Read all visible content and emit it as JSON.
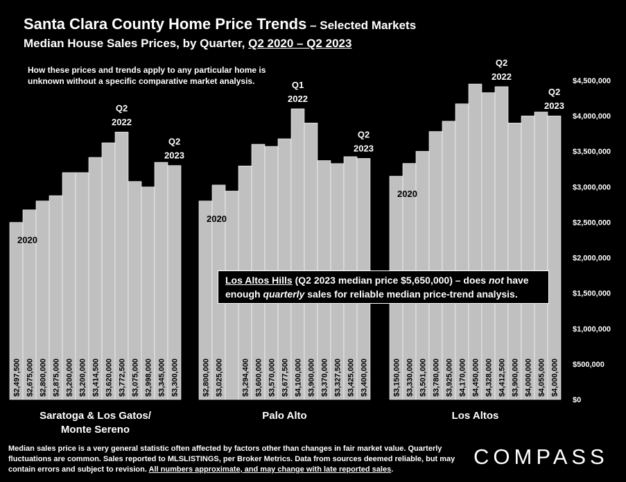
{
  "header": {
    "title_main": "Santa Clara County Home Price Trends",
    "title_suffix": " – Selected Markets",
    "subtitle_prefix": "Median House Sales Prices, by Quarter, ",
    "subtitle_period": "Q2 2020 – Q2 2023",
    "note": "How these prices and trends apply to any particular home is unknown without a specific comparative market analysis."
  },
  "callout": {
    "link_text": "Los Altos Hills",
    "text_a": " (Q2 2023 median price $5,650,000) – does ",
    "emph_not": "not",
    "text_b": " have enough ",
    "emph_quarterly": "quarterly",
    "text_c": " sales for reliable median price-trend analysis."
  },
  "footer": {
    "text": "Median sales price is a very general statistic often affected by factors other than changes in fair market value. Quarterly fluctuations are common. Sales reported to MLSLISTINGS, per Broker Metrics. Data from sources deemed reliable, but may contain errors and subject to revision. ",
    "underlined": "All numbers approximate, and may change with late reported sales",
    "end": "."
  },
  "logo": {
    "text": "COMPASS"
  },
  "colors": {
    "background": "#000000",
    "bar": "#c0c0c0",
    "text": "#ffffff"
  },
  "chart_data": {
    "type": "bar",
    "ylim": [
      0,
      4500000
    ],
    "yticks": [
      "$0",
      "$500,000",
      "$1,000,000",
      "$1,500,000",
      "$2,000,000",
      "$2,500,000",
      "$3,000,000",
      "$3,500,000",
      "$4,000,000",
      "$4,500,000"
    ],
    "grid": false,
    "groups": [
      {
        "name": "Saratoga & Los Gatos/\nMonte Sereno",
        "values": [
          2497500,
          2675000,
          2800000,
          2875000,
          3200000,
          3200000,
          3414500,
          3620000,
          3772500,
          3075000,
          2998000,
          3345000,
          3300000
        ],
        "labels": [
          "$2,497,500",
          "$2,675,000",
          "$2,800,000",
          "$2,875,000",
          "$3,200,000",
          "$3,200,000",
          "$3,414,500",
          "$3,620,000",
          "$3,772,500",
          "$3,075,000",
          "$2,998,000",
          "$3,345,000",
          "$3,300,000"
        ],
        "annotations": [
          {
            "index": 0,
            "text": "2020"
          },
          {
            "index": 8,
            "text": "Q2\n2022"
          },
          {
            "index": 12,
            "text": "Q2\n2023"
          }
        ]
      },
      {
        "name": "Palo Alto",
        "values": [
          2800000,
          3025000,
          2940000,
          3294400,
          3600000,
          3570000,
          3677500,
          4100000,
          3900000,
          3370000,
          3327500,
          3425000,
          3400000
        ],
        "labels": [
          "$2,800,000",
          "$3,025,000",
          "",
          "$3,294,400",
          "$3,600,000",
          "$3,570,000",
          "$3,677,500",
          "$4,100,000",
          "$3,900,000",
          "$3,370,000",
          "$3,327,500",
          "$3,425,000",
          "$3,400,000"
        ],
        "annotations": [
          {
            "index": 0,
            "text": "2020"
          },
          {
            "index": 7,
            "text": "Q1\n2022"
          },
          {
            "index": 12,
            "text": "Q2\n2023"
          }
        ]
      },
      {
        "name": "Los Altos",
        "values": [
          3150000,
          3330000,
          3501000,
          3780000,
          3925000,
          4170000,
          4450000,
          4328000,
          4412500,
          3900000,
          4000000,
          4055000,
          4000000
        ],
        "labels": [
          "$3,150,000",
          "$3,330,000",
          "$3,501,000",
          "$3,780,000",
          "$3,925,000",
          "$4,170,000",
          "$4,450,000",
          "$4,328,000",
          "$4,412,500",
          "$3,900,000",
          "$4,000,000",
          "$4,055,000",
          "$4,000,000"
        ],
        "annotations": [
          {
            "index": 0,
            "text": "2020"
          },
          {
            "index": 8,
            "text": "Q2\n2022"
          },
          {
            "index": 12,
            "text": "Q2\n2023"
          }
        ]
      }
    ]
  }
}
